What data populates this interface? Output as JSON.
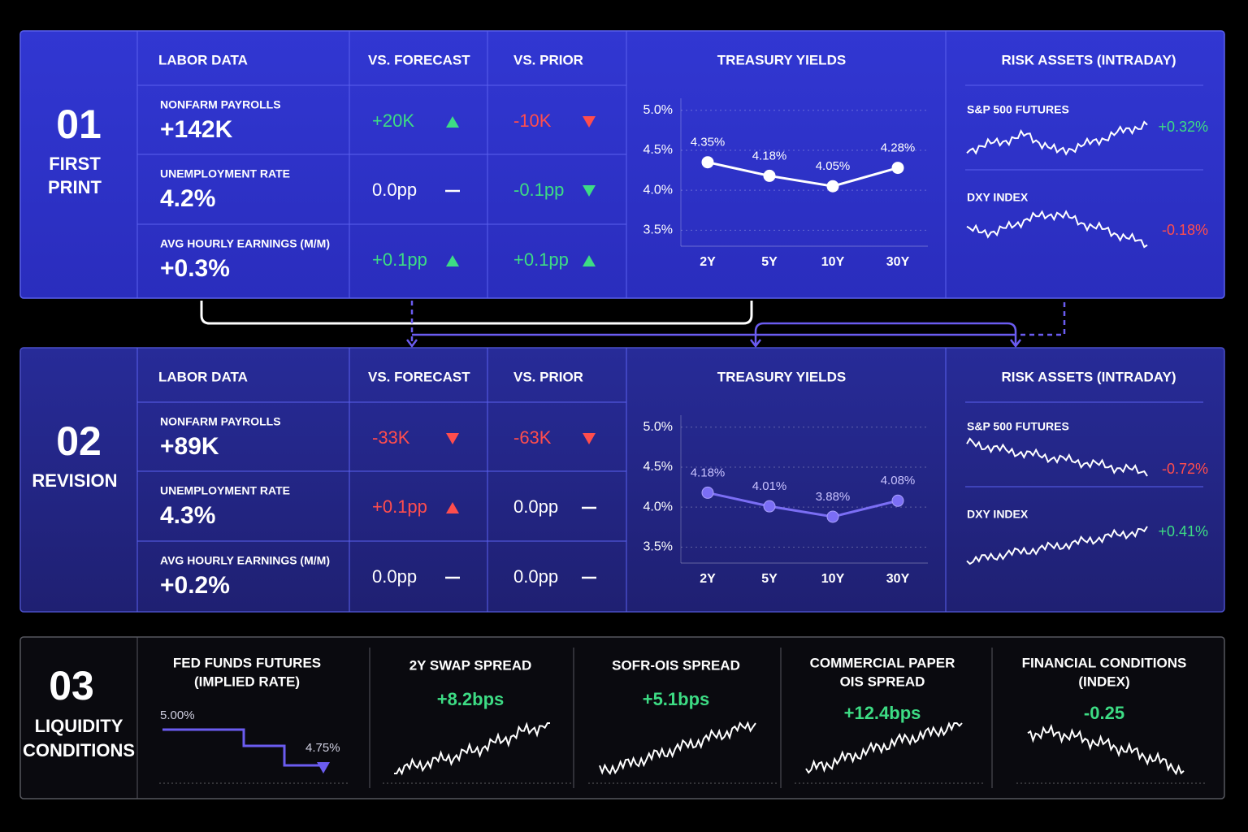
{
  "sections": [
    {
      "number": "01",
      "label": [
        "FIRST",
        "PRINT"
      ],
      "labor": {
        "headers": [
          "LABOR DATA",
          "VS. FORECAST",
          "VS. PRIOR"
        ],
        "rows": [
          {
            "name": "NONFARM PAYROLLS",
            "value": "+142K",
            "forecast": {
              "text": "+20K",
              "color": "#3ddc84",
              "trend": "up"
            },
            "prior": {
              "text": "-10K",
              "color": "#ff4d4d",
              "trend": "down"
            }
          },
          {
            "name": "UNEMPLOYMENT RATE",
            "value": "4.2%",
            "forecast": {
              "text": "0.0pp",
              "color": "#ffffff",
              "trend": "flat"
            },
            "prior": {
              "text": "-0.1pp",
              "color": "#3ddc84",
              "trend": "down"
            }
          },
          {
            "name": "AVG HOURLY EARNINGS (M/M)",
            "value": "+0.3%",
            "forecast": {
              "text": "+0.1pp",
              "color": "#3ddc84",
              "trend": "up"
            },
            "prior": {
              "text": "+0.1pp",
              "color": "#3ddc84",
              "trend": "up"
            }
          }
        ]
      },
      "yields": {
        "type": "line",
        "title": "TREASURY YIELDS",
        "categories": [
          "2Y",
          "5Y",
          "10Y",
          "30Y"
        ],
        "values": [
          4.35,
          4.18,
          4.05,
          4.28
        ],
        "value_labels": [
          "4.35%",
          "4.18%",
          "4.05%",
          "4.28%"
        ],
        "ylim": [
          3.3,
          5.15
        ],
        "yticks": [
          {
            "value": 3.5,
            "label": "3.5%"
          },
          {
            "value": 4.0,
            "label": "4.0%"
          },
          {
            "value": 4.5,
            "label": "4.5%"
          },
          {
            "value": 5.0,
            "label": "5.0%"
          }
        ],
        "color": "#ffffff",
        "grid": true
      },
      "risk": {
        "title": "RISK ASSETS (INTRADAY)",
        "items": [
          {
            "name": "S&P 500 FUTURES",
            "change": "+0.32%",
            "color": "#3ddc84"
          },
          {
            "name": "DXY INDEX",
            "change": "-0.18%",
            "color": "#ff4d4d"
          }
        ]
      }
    },
    {
      "number": "02",
      "label": [
        "REVISION"
      ],
      "labor": {
        "headers": [
          "LABOR DATA",
          "VS. FORECAST",
          "VS. PRIOR"
        ],
        "rows": [
          {
            "name": "NONFARM PAYROLLS",
            "value": "+89K",
            "forecast": {
              "text": "-33K",
              "color": "#ff4d4d",
              "trend": "down"
            },
            "prior": {
              "text": "-63K",
              "color": "#ff4d4d",
              "trend": "down"
            }
          },
          {
            "name": "UNEMPLOYMENT RATE",
            "value": "4.3%",
            "forecast": {
              "text": "+0.1pp",
              "color": "#ff4d4d",
              "trend": "up"
            },
            "prior": {
              "text": "0.0pp",
              "color": "#ffffff",
              "trend": "flat"
            }
          },
          {
            "name": "AVG HOURLY EARNINGS (M/M)",
            "value": "+0.2%",
            "forecast": {
              "text": "0.0pp",
              "color": "#ffffff",
              "trend": "flat"
            },
            "prior": {
              "text": "0.0pp",
              "color": "#ffffff",
              "trend": "flat"
            }
          }
        ]
      },
      "yields": {
        "type": "line",
        "title": "TREASURY YIELDS",
        "categories": [
          "2Y",
          "5Y",
          "10Y",
          "30Y"
        ],
        "values": [
          4.18,
          4.01,
          3.88,
          4.08
        ],
        "value_labels": [
          "4.18%",
          "4.01%",
          "3.88%",
          "4.08%"
        ],
        "ylim": [
          3.3,
          5.15
        ],
        "yticks": [
          {
            "value": 3.5,
            "label": "3.5%"
          },
          {
            "value": 4.0,
            "label": "4.0%"
          },
          {
            "value": 4.5,
            "label": "4.5%"
          },
          {
            "value": 5.0,
            "label": "5.0%"
          }
        ],
        "color": "#7b6ef5",
        "grid": true
      },
      "risk": {
        "title": "RISK ASSETS (INTRADAY)",
        "items": [
          {
            "name": "S&P 500 FUTURES",
            "change": "-0.72%",
            "color": "#ff4d4d"
          },
          {
            "name": "DXY INDEX",
            "change": "+0.41%",
            "color": "#3ddc84"
          }
        ]
      }
    }
  ],
  "liquidity": {
    "number": "03",
    "label": [
      "LIQUIDITY",
      "CONDITIONS"
    ],
    "items": [
      {
        "title": [
          "FED FUNDS FUTURES",
          "(IMPLIED RATE)"
        ],
        "labels": [
          "5.00%",
          "4.75%"
        ],
        "color": "#6b5cf0"
      },
      {
        "title": [
          "2Y SWAP SPREAD"
        ],
        "value": "+8.2bps",
        "color": "#3ddc84"
      },
      {
        "title": [
          "SOFR-OIS SPREAD"
        ],
        "value": "+5.1bps",
        "color": "#3ddc84"
      },
      {
        "title": [
          "COMMERCIAL PAPER",
          "OIS SPREAD"
        ],
        "value": "+12.4bps",
        "color": "#3ddc84"
      },
      {
        "title": [
          "FINANCIAL CONDITIONS",
          "(INDEX)"
        ],
        "value": "-0.25",
        "color": "#3ddc84"
      }
    ]
  }
}
